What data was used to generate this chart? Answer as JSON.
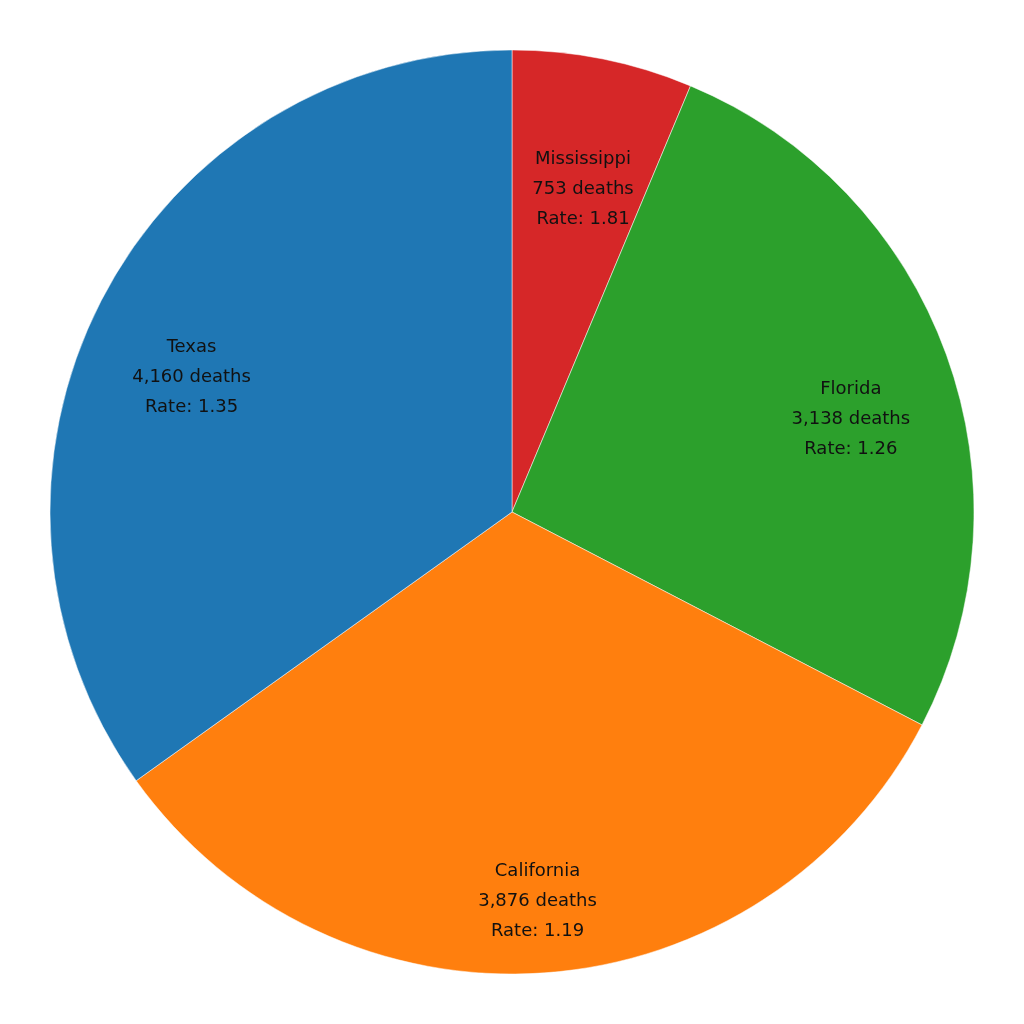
{
  "chart_data": {
    "type": "pie",
    "categories": [
      "Mississippi",
      "Florida",
      "California",
      "Texas"
    ],
    "values": [
      753,
      3138,
      3876,
      4160
    ],
    "colors": [
      "#d62728",
      "#2ca02c",
      "#ff7f0e",
      "#1f77b4"
    ],
    "value_labels": [
      "753 deaths\nRate: 1.81",
      "3,138 deaths\nRate: 1.26",
      "3,876 deaths\nRate: 1.19",
      "4,160 deaths\nRate: 1.35"
    ]
  }
}
